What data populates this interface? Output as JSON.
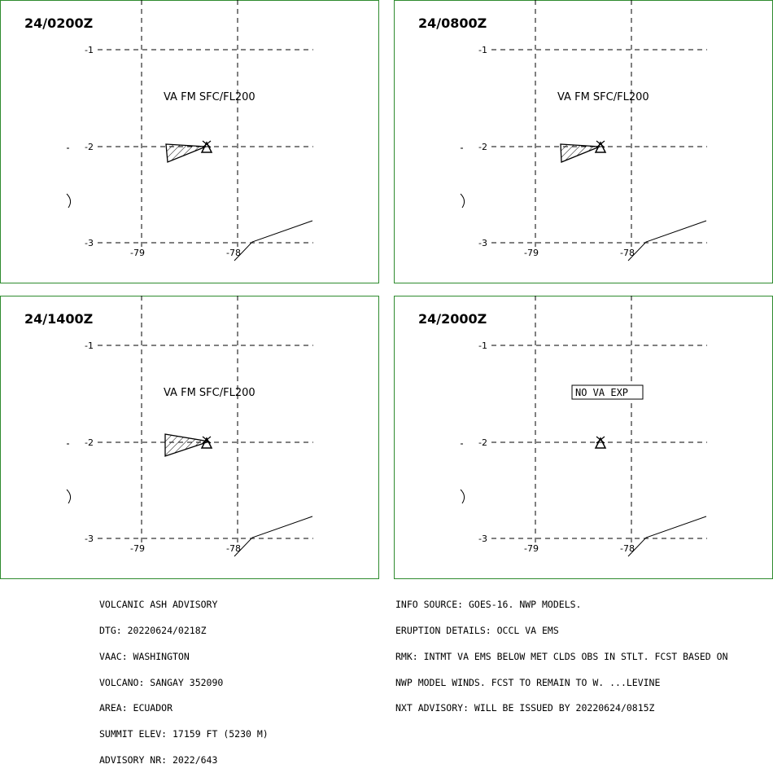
{
  "panels": [
    {
      "time": "24/0200Z",
      "label": "VA FM SFC/FL200",
      "ash": true
    },
    {
      "time": "24/0800Z",
      "label": "VA FM SFC/FL200",
      "ash": true
    },
    {
      "time": "24/1400Z",
      "label": "VA FM SFC/FL200",
      "ash": true
    },
    {
      "time": "24/2000Z",
      "label": "NO VA EXP",
      "ash": false
    }
  ],
  "axes": {
    "lat_ticks": [
      "-1",
      "-2",
      "-3"
    ],
    "lon_ticks": [
      "-79",
      "-78"
    ]
  },
  "advisory_left": [
    "VOLCANIC ASH ADVISORY",
    "DTG: 20220624/0218Z",
    "VAAC: WASHINGTON",
    "VOLCANO: SANGAY 352090",
    "AREA: ECUADOR",
    "SUMMIT ELEV: 17159 FT (5230 M)",
    "ADVISORY NR: 2022/643"
  ],
  "advisory_right": [
    "INFO SOURCE: GOES-16. NWP MODELS.",
    "ERUPTION DETAILS: OCCL VA EMS",
    "RMK: INTMT VA EMS BELOW MET CLDS OBS IN STLT. FCST BASED ON",
    "NWP MODEL WINDS. FCST TO REMAIN TO W. ...LEVINE",
    "NXT ADVISORY: WILL BE ISSUED BY 20220624/0815Z"
  ],
  "colors": {
    "frame": "#2e8b2e",
    "ink": "#000000"
  }
}
